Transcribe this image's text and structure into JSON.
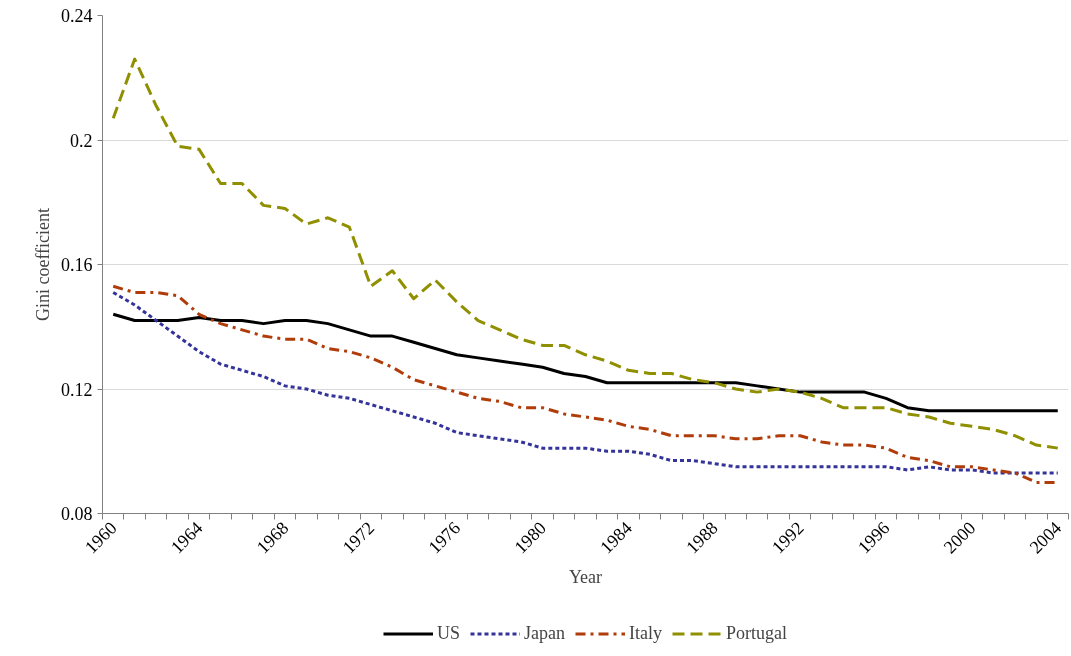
{
  "chart_data": {
    "type": "line",
    "xlabel": "Year",
    "ylabel": "Gini coefficient",
    "categories": [
      "1960",
      null,
      null,
      null,
      "1964",
      null,
      null,
      null,
      "1968",
      null,
      null,
      null,
      "1972",
      null,
      null,
      null,
      "1976",
      null,
      null,
      null,
      "1980",
      null,
      null,
      null,
      "1984",
      null,
      null,
      null,
      "1988",
      null,
      null,
      null,
      "1992",
      null,
      null,
      null,
      "1996",
      null,
      null,
      null,
      "2000",
      null,
      null,
      null,
      "2004"
    ],
    "ylim": [
      0.08,
      0.24
    ],
    "yticks": [
      0.08,
      0.12,
      0.16,
      0.2,
      0.24
    ],
    "grid": "y",
    "legend": "bottom",
    "marker": "none",
    "series": [
      {
        "name": "US",
        "color": "#000000",
        "line_style": "solid",
        "values": [
          0.144,
          0.142,
          0.142,
          0.142,
          0.143,
          0.142,
          0.142,
          0.141,
          0.142,
          0.142,
          0.141,
          0.139,
          0.137,
          0.137,
          0.135,
          0.133,
          0.131,
          0.13,
          0.129,
          0.128,
          0.127,
          0.125,
          0.124,
          0.122,
          0.122,
          0.122,
          0.122,
          0.122,
          0.122,
          0.122,
          0.121,
          0.12,
          0.119,
          0.119,
          0.119,
          0.119,
          0.117,
          0.114,
          0.113,
          0.113,
          0.113,
          0.113,
          0.113,
          0.113,
          0.113
        ]
      },
      {
        "name": "Japan",
        "color": "#333399",
        "line_style": "dotted",
        "values": [
          0.151,
          0.147,
          0.142,
          0.137,
          0.132,
          0.128,
          0.126,
          0.124,
          0.121,
          0.12,
          0.118,
          0.117,
          0.115,
          0.113,
          0.111,
          0.109,
          0.106,
          0.105,
          0.104,
          0.103,
          0.101,
          0.101,
          0.101,
          0.1,
          0.1,
          0.099,
          0.097,
          0.097,
          0.096,
          0.095,
          0.095,
          0.095,
          0.095,
          0.095,
          0.095,
          0.095,
          0.095,
          0.094,
          0.095,
          0.094,
          0.094,
          0.093,
          0.093,
          0.093,
          0.093
        ]
      },
      {
        "name": "Italy",
        "color": "#b03c0a",
        "line_style": "dashdot",
        "values": [
          0.153,
          0.151,
          0.151,
          0.15,
          0.144,
          0.141,
          0.139,
          0.137,
          0.136,
          0.136,
          0.133,
          0.132,
          0.13,
          0.127,
          0.123,
          0.121,
          0.119,
          0.117,
          0.116,
          0.114,
          0.114,
          0.112,
          0.111,
          0.11,
          0.108,
          0.107,
          0.105,
          0.105,
          0.105,
          0.104,
          0.104,
          0.105,
          0.105,
          0.103,
          0.102,
          0.102,
          0.101,
          0.098,
          0.097,
          0.095,
          0.095,
          0.094,
          0.093,
          0.09,
          0.09
        ]
      },
      {
        "name": "Portugal",
        "color": "#8f8f00",
        "line_style": "dashed",
        "values": [
          0.207,
          0.226,
          0.211,
          0.198,
          0.197,
          0.186,
          0.186,
          0.179,
          0.178,
          0.173,
          0.175,
          0.172,
          0.153,
          0.158,
          0.149,
          0.155,
          0.148,
          0.142,
          0.139,
          0.136,
          0.134,
          0.134,
          0.131,
          0.129,
          0.126,
          0.125,
          0.125,
          0.123,
          0.122,
          0.12,
          0.119,
          0.12,
          0.119,
          0.117,
          0.114,
          0.114,
          0.114,
          0.112,
          0.111,
          0.109,
          0.108,
          0.107,
          0.105,
          0.102,
          0.101
        ]
      }
    ]
  }
}
